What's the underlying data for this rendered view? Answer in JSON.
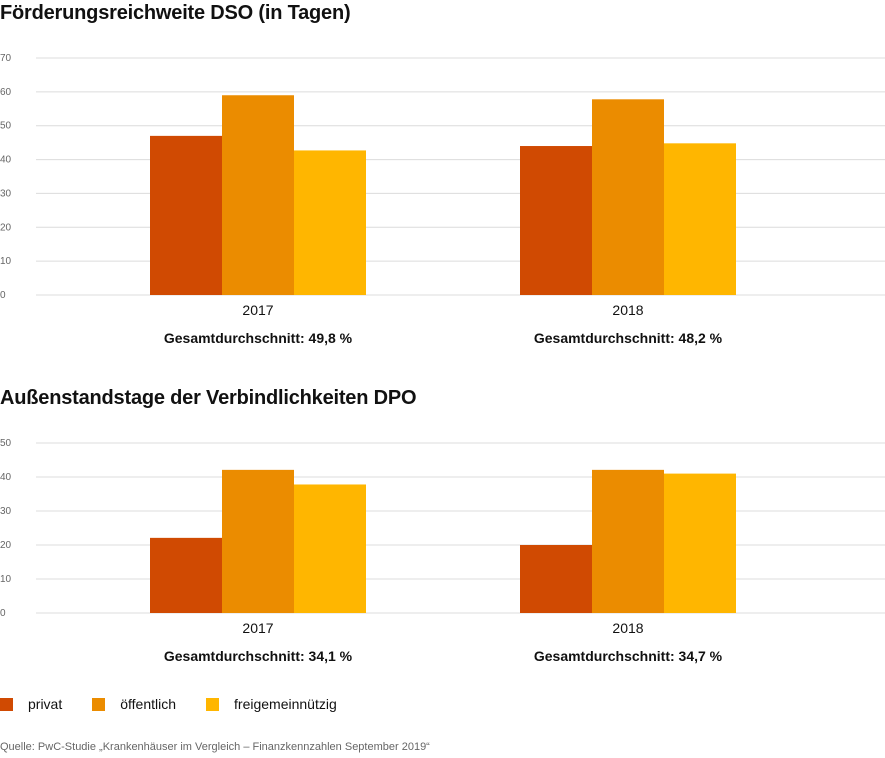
{
  "source": "Quelle: PwC-Studie „Krankenhäuser im Vergleich – Finanzkennzahlen September 2019“",
  "legend": [
    {
      "label": "privat",
      "color": "#D04A02"
    },
    {
      "label": "öffentlich",
      "color": "#EB8C00"
    },
    {
      "label": "freigemeinnützig",
      "color": "#FFB600"
    }
  ],
  "chart_data": [
    {
      "type": "bar",
      "title": "Förderungsreichweite DSO (in Tagen)",
      "categories": [
        "2017",
        "2018"
      ],
      "series": [
        {
          "name": "privat",
          "values": [
            47,
            44
          ]
        },
        {
          "name": "öffentlich",
          "values": [
            59,
            57.8
          ]
        },
        {
          "name": "freigemeinnützig",
          "values": [
            42.7,
            44.8
          ]
        }
      ],
      "averages": [
        "Gesamtdurchschnitt: 49,8 %",
        "Gesamtdurchschnitt: 48,2 %"
      ],
      "yticks": [
        "0",
        "10",
        "20",
        "30",
        "40",
        "50",
        "60",
        "70"
      ],
      "ylim": [
        0,
        70
      ],
      "grid": true
    },
    {
      "type": "bar",
      "title": "Außenstandstage der Verbindlichkeiten DPO",
      "categories": [
        "2017",
        "2018"
      ],
      "series": [
        {
          "name": "privat",
          "values": [
            22.1,
            20
          ]
        },
        {
          "name": "öffentlich",
          "values": [
            42.1,
            42.1
          ]
        },
        {
          "name": "freigemeinnützig",
          "values": [
            37.8,
            41
          ]
        }
      ],
      "averages": [
        "Gesamtdurchschnitt: 34,1 %",
        "Gesamtdurchschnitt: 34,7 %"
      ],
      "yticks": [
        "0",
        "10",
        "20",
        "30",
        "40",
        "50"
      ],
      "ylim": [
        0,
        50
      ],
      "grid": true
    }
  ]
}
